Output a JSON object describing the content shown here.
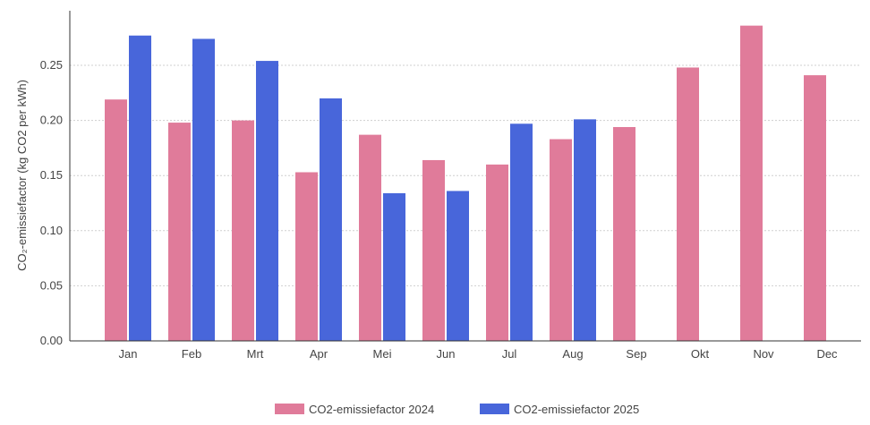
{
  "chart_data": {
    "type": "bar",
    "title": "",
    "xlabel": "",
    "ylabel": "CO₂-emissiefactor (kg CO2 per kWh)",
    "ylim": [
      0,
      0.3
    ],
    "yticks": [
      "0.00",
      "0.05",
      "0.10",
      "0.15",
      "0.20",
      "0.25"
    ],
    "ytick_values": [
      0,
      0.05,
      0.1,
      0.15,
      0.2,
      0.25
    ],
    "grid": "horizontal-dotted",
    "legend_position": "bottom-center",
    "categories": [
      "Jan",
      "Feb",
      "Mrt",
      "Apr",
      "Mei",
      "Jun",
      "Jul",
      "Aug",
      "Sep",
      "Okt",
      "Nov",
      "Dec"
    ],
    "series": [
      {
        "name": "CO2-emissiefactor 2024",
        "color": "#e07b9a",
        "values": [
          0.219,
          0.198,
          0.2,
          0.153,
          0.187,
          0.164,
          0.16,
          0.183,
          0.194,
          0.248,
          0.286,
          0.241
        ]
      },
      {
        "name": "CO2-emissiefactor 2025",
        "color": "#4866da",
        "values": [
          0.277,
          0.274,
          0.254,
          0.22,
          0.134,
          0.136,
          0.197,
          0.201,
          null,
          null,
          null,
          null
        ]
      }
    ]
  }
}
